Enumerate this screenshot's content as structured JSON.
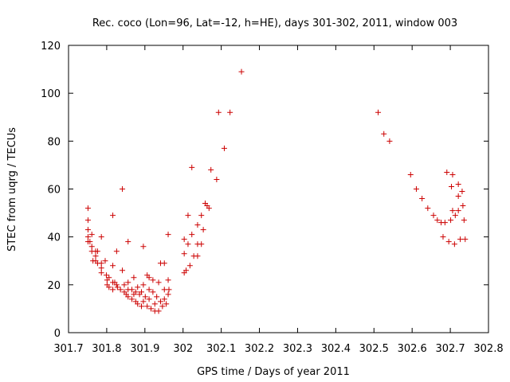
{
  "chart_data": {
    "type": "scatter",
    "title": "Rec. coco (Lon=96, Lat=-12, h=HE), days 301-302, 2011, window 003",
    "xlabel": "GPS time / Days of year 2011",
    "ylabel": "STEC from uqrg / TECUs",
    "xlim": [
      301.7,
      302.8
    ],
    "ylim": [
      0,
      120
    ],
    "x_ticks": [
      "301.7",
      "301.8",
      "301.9",
      "302",
      "302.1",
      "302.2",
      "302.3",
      "302.4",
      "302.5",
      "302.6",
      "302.7",
      "302.8"
    ],
    "y_ticks": [
      "0",
      "20",
      "40",
      "60",
      "80",
      "100",
      "120"
    ],
    "x_tick_values": [
      301.7,
      301.8,
      301.9,
      302.0,
      302.1,
      302.2,
      302.3,
      302.4,
      302.5,
      302.6,
      302.7,
      302.8
    ],
    "y_tick_values": [
      0,
      20,
      40,
      60,
      80,
      100,
      120
    ],
    "marker": "+",
    "color": "#cc0000",
    "grid": false,
    "series": [
      {
        "points": [
          [
            301.751,
            52
          ],
          [
            301.751,
            47
          ],
          [
            301.751,
            43
          ],
          [
            301.751,
            40
          ],
          [
            301.751,
            38
          ],
          [
            301.756,
            38
          ],
          [
            301.761,
            41
          ],
          [
            301.761,
            36
          ],
          [
            301.761,
            34
          ],
          [
            301.764,
            30
          ],
          [
            301.771,
            34
          ],
          [
            301.771,
            32
          ],
          [
            301.771,
            30
          ],
          [
            301.776,
            34
          ],
          [
            301.776,
            29
          ],
          [
            301.786,
            40
          ],
          [
            301.786,
            29
          ],
          [
            301.786,
            27
          ],
          [
            301.786,
            25
          ],
          [
            301.796,
            30
          ],
          [
            301.799,
            24
          ],
          [
            301.801,
            22
          ],
          [
            301.801,
            20
          ],
          [
            301.806,
            23
          ],
          [
            301.806,
            19
          ],
          [
            301.816,
            49
          ],
          [
            301.816,
            28
          ],
          [
            301.816,
            21
          ],
          [
            301.816,
            18
          ],
          [
            301.821,
            21
          ],
          [
            301.826,
            34
          ],
          [
            301.826,
            20
          ],
          [
            301.828,
            19
          ],
          [
            301.836,
            18
          ],
          [
            301.841,
            60
          ],
          [
            301.841,
            26
          ],
          [
            301.846,
            20
          ],
          [
            301.846,
            17
          ],
          [
            301.851,
            16
          ],
          [
            301.856,
            38
          ],
          [
            301.856,
            21
          ],
          [
            301.856,
            18
          ],
          [
            301.856,
            15
          ],
          [
            301.866,
            18
          ],
          [
            301.866,
            14
          ],
          [
            301.871,
            23
          ],
          [
            301.871,
            16
          ],
          [
            301.876,
            17
          ],
          [
            301.876,
            13
          ],
          [
            301.881,
            19
          ],
          [
            301.881,
            12
          ],
          [
            301.886,
            16
          ],
          [
            301.891,
            17
          ],
          [
            301.891,
            11
          ],
          [
            301.896,
            36
          ],
          [
            301.896,
            20
          ],
          [
            301.896,
            13
          ],
          [
            301.901,
            15
          ],
          [
            301.906,
            24
          ],
          [
            301.906,
            11
          ],
          [
            301.911,
            23
          ],
          [
            301.911,
            18
          ],
          [
            301.911,
            14
          ],
          [
            301.916,
            10
          ],
          [
            301.921,
            22
          ],
          [
            301.921,
            17
          ],
          [
            301.926,
            12
          ],
          [
            301.926,
            9
          ],
          [
            301.931,
            15
          ],
          [
            301.936,
            21
          ],
          [
            301.936,
            9
          ],
          [
            301.941,
            29
          ],
          [
            301.941,
            13
          ],
          [
            301.946,
            11
          ],
          [
            301.951,
            29
          ],
          [
            301.951,
            18
          ],
          [
            301.951,
            14
          ],
          [
            301.956,
            12
          ],
          [
            301.961,
            41
          ],
          [
            301.961,
            22
          ],
          [
            301.961,
            16
          ],
          [
            301.963,
            18
          ],
          [
            302.003,
            39
          ],
          [
            302.003,
            33
          ],
          [
            302.003,
            25
          ],
          [
            302.008,
            26
          ],
          [
            302.013,
            49
          ],
          [
            302.013,
            37
          ],
          [
            302.018,
            28
          ],
          [
            302.023,
            69
          ],
          [
            302.023,
            41
          ],
          [
            302.028,
            32
          ],
          [
            302.038,
            45
          ],
          [
            302.038,
            37
          ],
          [
            302.038,
            32
          ],
          [
            302.048,
            49
          ],
          [
            302.048,
            37
          ],
          [
            302.053,
            43
          ],
          [
            302.058,
            54
          ],
          [
            302.063,
            53
          ],
          [
            302.068,
            52
          ],
          [
            302.073,
            68
          ],
          [
            302.088,
            64
          ],
          [
            302.093,
            92
          ],
          [
            302.108,
            77
          ],
          [
            302.123,
            92
          ],
          [
            302.153,
            109
          ],
          [
            302.511,
            92
          ],
          [
            302.526,
            83
          ],
          [
            302.541,
            80
          ],
          [
            302.596,
            66
          ],
          [
            302.611,
            60
          ],
          [
            302.626,
            56
          ],
          [
            302.641,
            52
          ],
          [
            302.656,
            49
          ],
          [
            302.666,
            47
          ],
          [
            302.676,
            46
          ],
          [
            302.681,
            40
          ],
          [
            302.686,
            46
          ],
          [
            302.691,
            67
          ],
          [
            302.696,
            38
          ],
          [
            302.701,
            47
          ],
          [
            302.703,
            61
          ],
          [
            302.706,
            66
          ],
          [
            302.706,
            51
          ],
          [
            302.711,
            37
          ],
          [
            302.713,
            49
          ],
          [
            302.721,
            62
          ],
          [
            302.721,
            57
          ],
          [
            302.721,
            51
          ],
          [
            302.726,
            39
          ],
          [
            302.731,
            59
          ],
          [
            302.733,
            53
          ],
          [
            302.736,
            47
          ],
          [
            302.739,
            39
          ]
        ]
      }
    ]
  }
}
